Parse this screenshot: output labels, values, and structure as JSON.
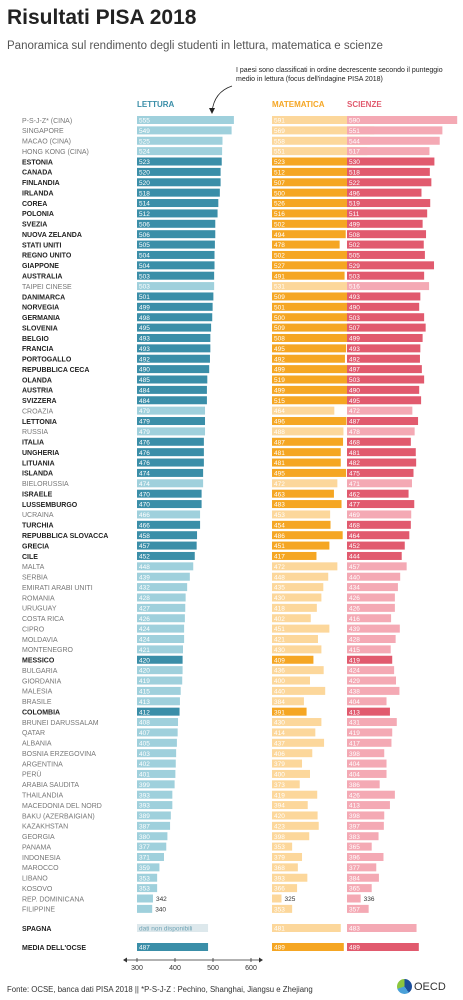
{
  "title": "Risultati PISA 2018",
  "subtitle": "Panoramica sul rendimento degli studenti in lettura, matematica e scienze",
  "annotation": "I paesi sono classificati in ordine decrescente secondo il punteggio medio in lettura (focus dell'indagine PISA 2018)",
  "source": "Fonte: OCSE, banca dati PISA 2018  ||  *P-S-J-Z : Pechino, Shanghai, Jiangsu e Zhejiang",
  "logo_text": "OECD",
  "colors": {
    "reading": "#3a8ea8",
    "reading_light": "#9fd0dc",
    "math": "#f5a623",
    "math_light": "#fcd79b",
    "science": "#e15a6e",
    "science_light": "#f4a9b4",
    "header_reading": "#3a8ea8",
    "header_math": "#f5a623",
    "header_science": "#e15a6e"
  },
  "chart_data": {
    "type": "bar",
    "columns": [
      "LETTURA",
      "MATEMATICA",
      "SCIENZE"
    ],
    "scale_label_values": [
      300,
      400,
      500,
      600
    ],
    "rows": [
      {
        "country": "P-S-J-Z* (CINA)",
        "reading": 555,
        "math": 591,
        "science": 590,
        "oecd": false
      },
      {
        "country": "SINGAPORE",
        "reading": 549,
        "math": 569,
        "science": 551,
        "oecd": false
      },
      {
        "country": "MACAO (CINA)",
        "reading": 525,
        "math": 558,
        "science": 544,
        "oecd": false
      },
      {
        "country": "HONG KONG (CINA)",
        "reading": 524,
        "math": 551,
        "science": 517,
        "oecd": false
      },
      {
        "country": "ESTONIA",
        "reading": 523,
        "math": 523,
        "science": 530,
        "oecd": true
      },
      {
        "country": "CANADA",
        "reading": 520,
        "math": 512,
        "science": 518,
        "oecd": true
      },
      {
        "country": "FINLANDIA",
        "reading": 520,
        "math": 507,
        "science": 522,
        "oecd": true
      },
      {
        "country": "IRLANDA",
        "reading": 518,
        "math": 500,
        "science": 496,
        "oecd": true
      },
      {
        "country": "COREA",
        "reading": 514,
        "math": 526,
        "science": 519,
        "oecd": true
      },
      {
        "country": "POLONIA",
        "reading": 512,
        "math": 516,
        "science": 511,
        "oecd": true
      },
      {
        "country": "SVEZIA",
        "reading": 506,
        "math": 502,
        "science": 499,
        "oecd": true
      },
      {
        "country": "NUOVA ZELANDA",
        "reading": 506,
        "math": 494,
        "science": 508,
        "oecd": true
      },
      {
        "country": "STATI UNITI",
        "reading": 505,
        "math": 478,
        "science": 502,
        "oecd": true
      },
      {
        "country": "REGNO UNITO",
        "reading": 504,
        "math": 502,
        "science": 505,
        "oecd": true
      },
      {
        "country": "GIAPPONE",
        "reading": 504,
        "math": 527,
        "science": 529,
        "oecd": true
      },
      {
        "country": "AUSTRALIA",
        "reading": 503,
        "math": 491,
        "science": 503,
        "oecd": true
      },
      {
        "country": "TAIPEI CINESE",
        "reading": 503,
        "math": 531,
        "science": 516,
        "oecd": false
      },
      {
        "country": "DANIMARCA",
        "reading": 501,
        "math": 509,
        "science": 493,
        "oecd": true
      },
      {
        "country": "NORVEGIA",
        "reading": 499,
        "math": 501,
        "science": 490,
        "oecd": true
      },
      {
        "country": "GERMANIA",
        "reading": 498,
        "math": 500,
        "science": 503,
        "oecd": true
      },
      {
        "country": "SLOVENIA",
        "reading": 495,
        "math": 509,
        "science": 507,
        "oecd": true
      },
      {
        "country": "BELGIO",
        "reading": 493,
        "math": 508,
        "science": 499,
        "oecd": true
      },
      {
        "country": "FRANCIA",
        "reading": 493,
        "math": 495,
        "science": 493,
        "oecd": true
      },
      {
        "country": "PORTOGALLO",
        "reading": 492,
        "math": 492,
        "science": 492,
        "oecd": true
      },
      {
        "country": "REPUBBLICA CECA",
        "reading": 490,
        "math": 499,
        "science": 497,
        "oecd": true
      },
      {
        "country": "OLANDA",
        "reading": 485,
        "math": 519,
        "science": 503,
        "oecd": true
      },
      {
        "country": "AUSTRIA",
        "reading": 484,
        "math": 499,
        "science": 490,
        "oecd": true
      },
      {
        "country": "SVIZZERA",
        "reading": 484,
        "math": 515,
        "science": 495,
        "oecd": true
      },
      {
        "country": "CROAZIA",
        "reading": 479,
        "math": 464,
        "science": 472,
        "oecd": false
      },
      {
        "country": "LETTONIA",
        "reading": 479,
        "math": 496,
        "science": 487,
        "oecd": true
      },
      {
        "country": "RUSSIA",
        "reading": 479,
        "math": 488,
        "science": 478,
        "oecd": false
      },
      {
        "country": "ITALIA",
        "reading": 476,
        "math": 487,
        "science": 468,
        "oecd": true
      },
      {
        "country": "UNGHERIA",
        "reading": 476,
        "math": 481,
        "science": 481,
        "oecd": true
      },
      {
        "country": "LITUANIA",
        "reading": 476,
        "math": 481,
        "science": 482,
        "oecd": true
      },
      {
        "country": "ISLANDA",
        "reading": 474,
        "math": 495,
        "science": 475,
        "oecd": true
      },
      {
        "country": "BIELORUSSIA",
        "reading": 474,
        "math": 472,
        "science": 471,
        "oecd": false
      },
      {
        "country": "ISRAELE",
        "reading": 470,
        "math": 463,
        "science": 462,
        "oecd": true
      },
      {
        "country": "LUSSEMBURGO",
        "reading": 470,
        "math": 483,
        "science": 477,
        "oecd": true
      },
      {
        "country": "UCRAINA",
        "reading": 466,
        "math": 453,
        "science": 469,
        "oecd": false
      },
      {
        "country": "TURCHIA",
        "reading": 466,
        "math": 454,
        "science": 468,
        "oecd": true
      },
      {
        "country": "REPUBBLICA SLOVACCA",
        "reading": 458,
        "math": 486,
        "science": 464,
        "oecd": true
      },
      {
        "country": "GRECIA",
        "reading": 457,
        "math": 451,
        "science": 452,
        "oecd": true
      },
      {
        "country": "CILE",
        "reading": 452,
        "math": 417,
        "science": 444,
        "oecd": true
      },
      {
        "country": "MALTA",
        "reading": 448,
        "math": 472,
        "science": 457,
        "oecd": false
      },
      {
        "country": "SERBIA",
        "reading": 439,
        "math": 448,
        "science": 440,
        "oecd": false
      },
      {
        "country": "EMIRATI ARABI UNITI",
        "reading": 432,
        "math": 435,
        "science": 434,
        "oecd": false
      },
      {
        "country": "ROMANIA",
        "reading": 428,
        "math": 430,
        "science": 426,
        "oecd": false
      },
      {
        "country": "URUGUAY",
        "reading": 427,
        "math": 418,
        "science": 426,
        "oecd": false
      },
      {
        "country": "COSTA RICA",
        "reading": 426,
        "math": 402,
        "science": 416,
        "oecd": false
      },
      {
        "country": "CIPRO",
        "reading": 424,
        "math": 451,
        "science": 439,
        "oecd": false
      },
      {
        "country": "MOLDAVIA",
        "reading": 424,
        "math": 421,
        "science": 428,
        "oecd": false
      },
      {
        "country": "MONTENEGRO",
        "reading": 421,
        "math": 430,
        "science": 415,
        "oecd": false
      },
      {
        "country": "MESSICO",
        "reading": 420,
        "math": 409,
        "science": 419,
        "oecd": true
      },
      {
        "country": "BULGARIA",
        "reading": 420,
        "math": 436,
        "science": 424,
        "oecd": false
      },
      {
        "country": "GIORDANIA",
        "reading": 419,
        "math": 400,
        "science": 429,
        "oecd": false
      },
      {
        "country": "MALESIA",
        "reading": 415,
        "math": 440,
        "science": 438,
        "oecd": false
      },
      {
        "country": "BRASILE",
        "reading": 413,
        "math": 384,
        "science": 404,
        "oecd": false
      },
      {
        "country": "COLOMBIA",
        "reading": 412,
        "math": 391,
        "science": 413,
        "oecd": true
      },
      {
        "country": "BRUNEI DARUSSALAM",
        "reading": 408,
        "math": 430,
        "science": 431,
        "oecd": false
      },
      {
        "country": "QATAR",
        "reading": 407,
        "math": 414,
        "science": 419,
        "oecd": false
      },
      {
        "country": "ALBANIA",
        "reading": 405,
        "math": 437,
        "science": 417,
        "oecd": false
      },
      {
        "country": "BOSNIA ERZEGOVINA",
        "reading": 403,
        "math": 406,
        "science": 398,
        "oecd": false
      },
      {
        "country": "ARGENTINA",
        "reading": 402,
        "math": 379,
        "science": 404,
        "oecd": false
      },
      {
        "country": "PERÙ",
        "reading": 401,
        "math": 400,
        "science": 404,
        "oecd": false
      },
      {
        "country": "ARABIA SAUDITA",
        "reading": 399,
        "math": 373,
        "science": 386,
        "oecd": false
      },
      {
        "country": "THAILANDIA",
        "reading": 393,
        "math": 419,
        "science": 426,
        "oecd": false
      },
      {
        "country": "MACEDONIA DEL NORD",
        "reading": 393,
        "math": 394,
        "science": 413,
        "oecd": false
      },
      {
        "country": "BAKU (AZERBAIGIAN)",
        "reading": 389,
        "math": 420,
        "science": 398,
        "oecd": false
      },
      {
        "country": "KAZAKHSTAN",
        "reading": 387,
        "math": 423,
        "science": 397,
        "oecd": false
      },
      {
        "country": "GEORGIA",
        "reading": 380,
        "math": 398,
        "science": 383,
        "oecd": false
      },
      {
        "country": "PANAMA",
        "reading": 377,
        "math": 353,
        "science": 365,
        "oecd": false
      },
      {
        "country": "INDONESIA",
        "reading": 371,
        "math": 379,
        "science": 396,
        "oecd": false
      },
      {
        "country": "MAROCCO",
        "reading": 359,
        "math": 368,
        "science": 377,
        "oecd": false
      },
      {
        "country": "LIBANO",
        "reading": 353,
        "math": 393,
        "science": 384,
        "oecd": false
      },
      {
        "country": "KOSOVO",
        "reading": 353,
        "math": 366,
        "science": 365,
        "oecd": false
      },
      {
        "country": "REP. DOMINICANA",
        "reading": 342,
        "math": 325,
        "science": 336,
        "oecd": false
      },
      {
        "country": "FILIPPINE",
        "reading": 340,
        "math": 353,
        "science": 357,
        "oecd": false
      }
    ],
    "spain": {
      "country": "SPAGNA",
      "reading_text": "dati non disponibili",
      "math": 481,
      "science": 483,
      "oecd": true
    },
    "average": {
      "country": "MEDIA DELL'OCSE",
      "reading": 487,
      "math": 489,
      "science": 489
    }
  }
}
